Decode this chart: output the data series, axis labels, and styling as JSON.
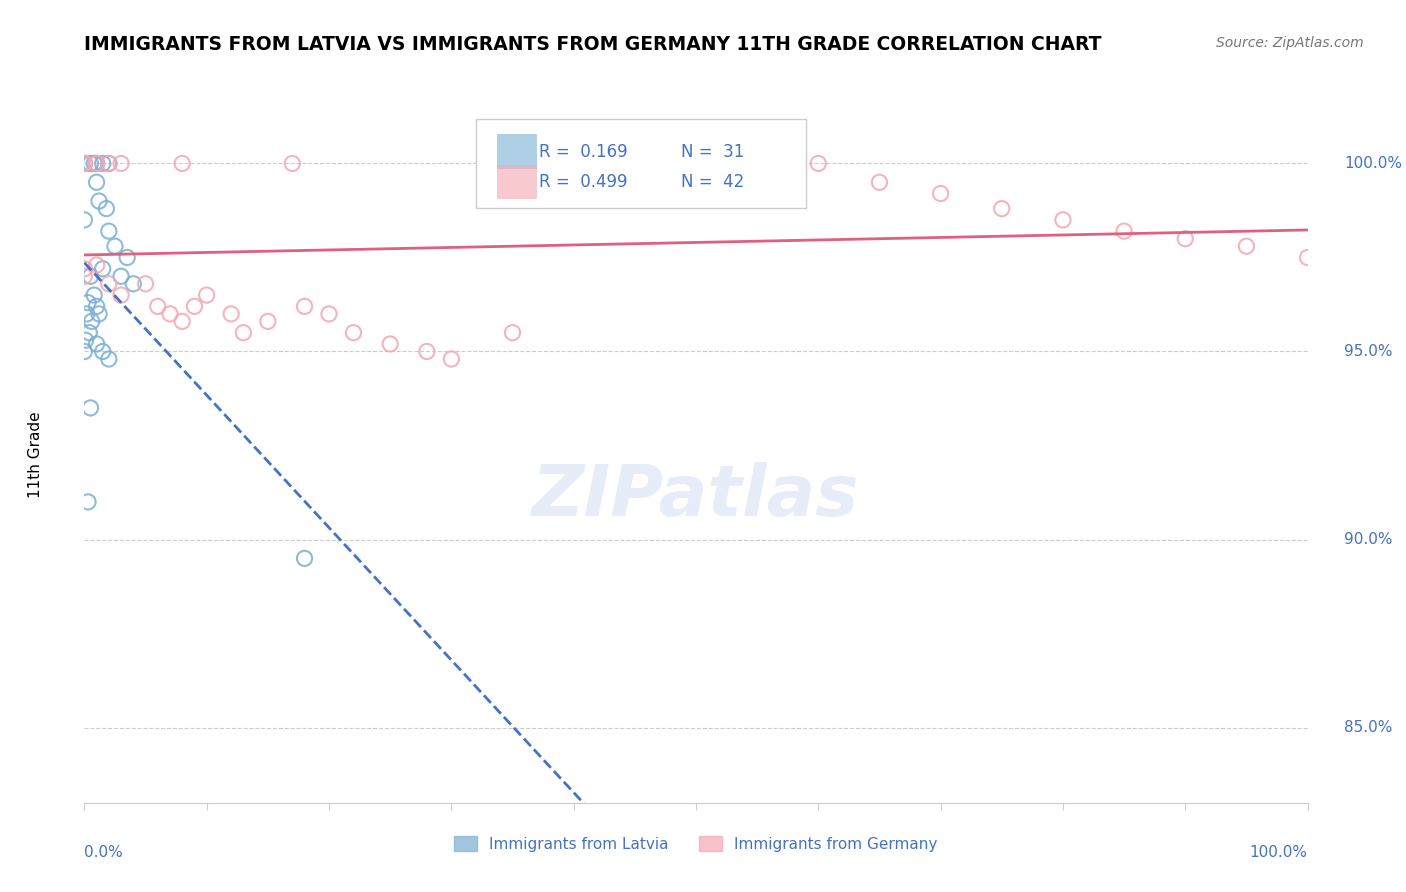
{
  "title": "IMMIGRANTS FROM LATVIA VS IMMIGRANTS FROM GERMANY 11TH GRADE CORRELATION CHART",
  "source": "Source: ZipAtlas.com",
  "ylabel": "11th Grade",
  "ylabel_right_ticks": [
    85.0,
    90.0,
    95.0,
    100.0
  ],
  "legend_r_latvia": "0.169",
  "legend_n_latvia": "31",
  "legend_r_germany": "0.499",
  "legend_n_germany": "42",
  "watermark": "ZIPatlas",
  "blue_color": "#7bafd4",
  "pink_color": "#f4a7b2",
  "blue_line_color": "#4472c4",
  "pink_line_color": "#e06080",
  "latvia_x": [
    0.0,
    0.02,
    0.01,
    0.015,
    0.01,
    0.005,
    0.008,
    0.012,
    0.018,
    0.02,
    0.025,
    0.03,
    0.035,
    0.04,
    0.015,
    0.005,
    0.008,
    0.01,
    0.012,
    0.003,
    0.002,
    0.006,
    0.004,
    0.01,
    0.015,
    0.02,
    0.0,
    0.001,
    0.005,
    0.003,
    0.18
  ],
  "latvia_y": [
    98.5,
    100.0,
    99.5,
    100.0,
    100.0,
    100.0,
    100.0,
    99.0,
    98.8,
    98.2,
    97.8,
    97.0,
    97.5,
    96.8,
    97.2,
    97.0,
    96.5,
    96.2,
    96.0,
    96.3,
    96.0,
    95.8,
    95.5,
    95.2,
    95.0,
    94.8,
    95.0,
    95.3,
    93.5,
    91.0,
    89.5
  ],
  "germany_x": [
    0.0,
    0.0,
    0.01,
    0.02,
    0.03,
    0.05,
    0.06,
    0.07,
    0.08,
    0.09,
    0.1,
    0.12,
    0.13,
    0.15,
    0.2,
    0.22,
    0.25,
    0.28,
    0.3,
    0.0,
    0.01,
    0.02,
    0.0,
    0.0,
    0.0,
    0.01,
    0.03,
    0.08,
    0.17,
    0.5,
    0.55,
    0.6,
    0.65,
    0.7,
    0.75,
    0.8,
    0.85,
    0.9,
    0.95,
    1.0,
    0.18,
    0.35
  ],
  "germany_y": [
    97.2,
    97.0,
    97.3,
    96.8,
    96.5,
    96.8,
    96.2,
    96.0,
    95.8,
    96.2,
    96.5,
    96.0,
    95.5,
    95.8,
    96.0,
    95.5,
    95.2,
    95.0,
    94.8,
    100.0,
    100.0,
    100.0,
    100.0,
    100.0,
    100.0,
    100.0,
    100.0,
    100.0,
    100.0,
    100.0,
    100.0,
    100.0,
    99.5,
    99.2,
    98.8,
    98.5,
    98.2,
    98.0,
    97.8,
    97.5,
    96.2,
    95.5
  ]
}
